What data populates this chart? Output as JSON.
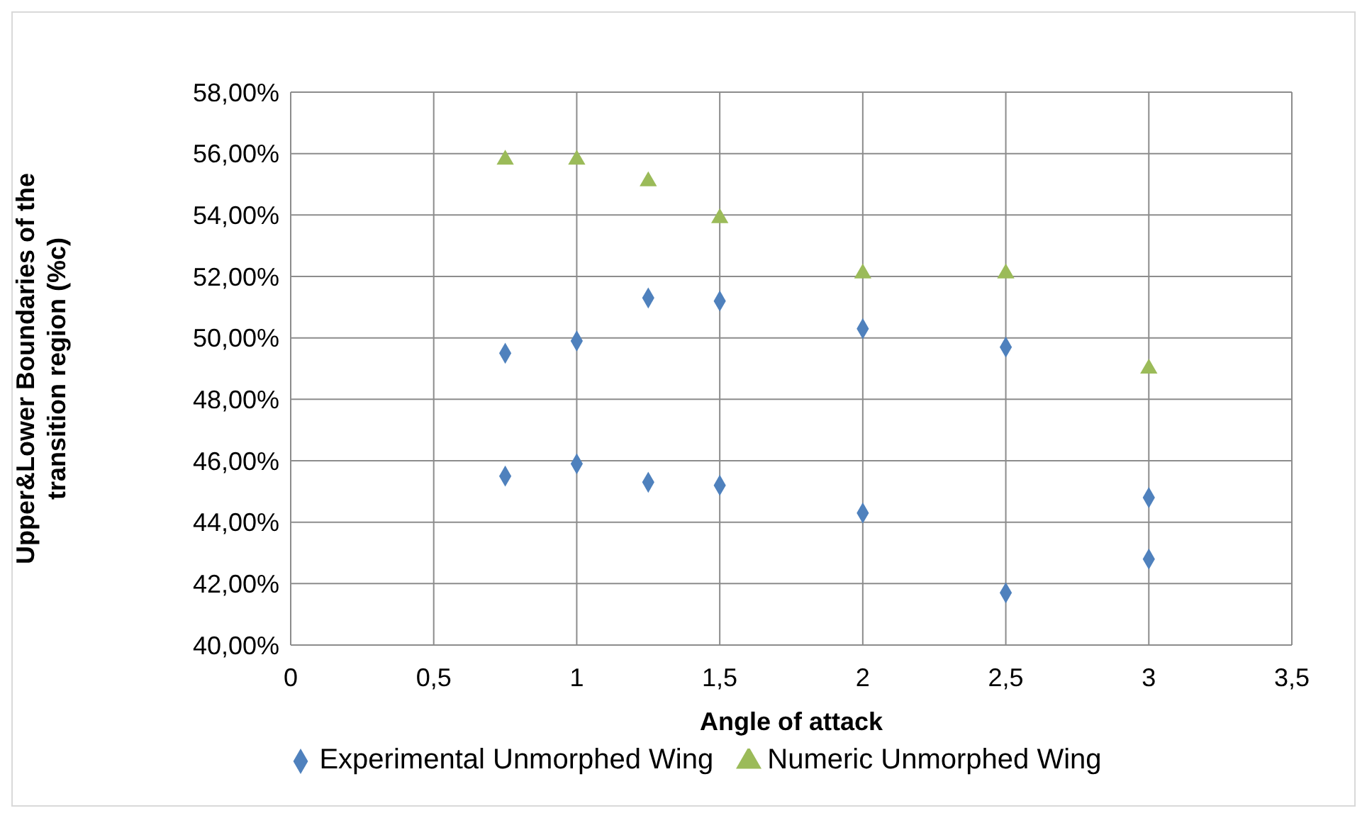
{
  "chart_data": {
    "type": "scatter",
    "xlabel": "Angle of attack",
    "ylabel": "Upper&Lower Boundaries of the transition region (%c)",
    "xlim": [
      0,
      3.5
    ],
    "xticks": [
      0,
      {
        "value": 0.5,
        "label": "0,5"
      },
      1,
      {
        "value": 1.5,
        "label": "1,5"
      },
      2,
      {
        "value": 2.5,
        "label": "2,5"
      },
      3,
      {
        "value": 3.5,
        "label": "3,5"
      }
    ],
    "ylim": [
      40,
      58
    ],
    "yticks": [
      {
        "value": 40,
        "label": "40,00%"
      },
      {
        "value": 42,
        "label": "42,00%"
      },
      {
        "value": 44,
        "label": "44,00%"
      },
      {
        "value": 46,
        "label": "46,00%"
      },
      {
        "value": 48,
        "label": "48,00%"
      },
      {
        "value": 50,
        "label": "50,00%"
      },
      {
        "value": 52,
        "label": "52,00%"
      },
      {
        "value": 54,
        "label": "54,00%"
      },
      {
        "value": 56,
        "label": "56,00%"
      },
      {
        "value": 58,
        "label": "58,00%"
      }
    ],
    "grid": true,
    "legend": "bottom",
    "series": [
      {
        "name": "Experimental Unmorphed Wing",
        "color": "#4f81bd",
        "marker": "diamond",
        "x": [
          0.75,
          0.75,
          1,
          1,
          1.25,
          1.25,
          1.5,
          1.5,
          2,
          2,
          2.5,
          2.5,
          3,
          3
        ],
        "values": [
          49.5,
          45.5,
          49.9,
          45.9,
          51.3,
          45.3,
          51.2,
          45.2,
          50.3,
          44.3,
          49.7,
          41.7,
          44.8,
          42.8
        ]
      },
      {
        "name": "Numeric Unmorphed Wing",
        "color": "#9bbb59",
        "marker": "triangle",
        "x": [
          0.75,
          1,
          1.25,
          1.5,
          2,
          2.5,
          3
        ],
        "values": [
          55.8,
          55.8,
          55.1,
          53.9,
          52.1,
          52.1,
          49.0
        ]
      }
    ]
  }
}
